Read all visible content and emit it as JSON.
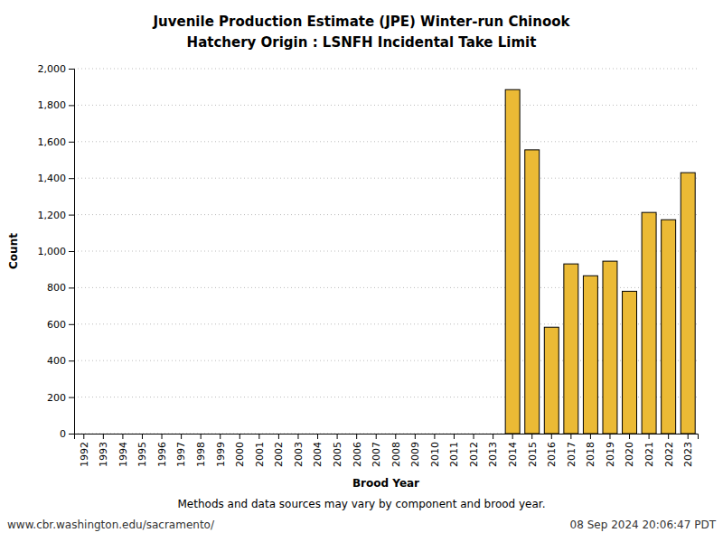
{
  "chart_data": {
    "type": "bar",
    "title": "Juvenile Production Estimate (JPE) Winter-run Chinook",
    "subtitle": "Hatchery Origin : LSNFH Incidental Take Limit",
    "x_label": "Brood Year",
    "y_label": "Count",
    "annotations": [
      "Methods and data sources may vary by component and brood year.",
      "www.cbr.washington.edu/sacramento/",
      "08 Sep 2024 20:06:47 PDT"
    ],
    "categories": [
      "1992",
      "1993",
      "1994",
      "1995",
      "1996",
      "1997",
      "1998",
      "1999",
      "2000",
      "2001",
      "2002",
      "2003",
      "2004",
      "2005",
      "2006",
      "2007",
      "2008",
      "2009",
      "2010",
      "2011",
      "2012",
      "2013",
      "2014",
      "2015",
      "2016",
      "2017",
      "2018",
      "2019",
      "2020",
      "2021",
      "2022",
      "2023"
    ],
    "values": [
      null,
      null,
      null,
      null,
      null,
      null,
      null,
      null,
      null,
      null,
      null,
      null,
      null,
      null,
      null,
      null,
      null,
      null,
      null,
      null,
      null,
      null,
      1885,
      1555,
      583,
      930,
      865,
      945,
      780,
      1212,
      1172,
      1430
    ],
    "color": "#ebba35",
    "ylim": [
      0,
      2000
    ],
    "yticks": [
      0,
      200,
      400,
      600,
      800,
      {
        "value": 1000,
        "label": "1,000"
      },
      {
        "value": 1200,
        "label": "1,200"
      },
      {
        "value": 1400,
        "label": "1,400"
      },
      {
        "value": 1600,
        "label": "1,600"
      },
      {
        "value": 1800,
        "label": "1,800"
      },
      {
        "value": 2000,
        "label": "2,000"
      }
    ],
    "grid": true
  }
}
